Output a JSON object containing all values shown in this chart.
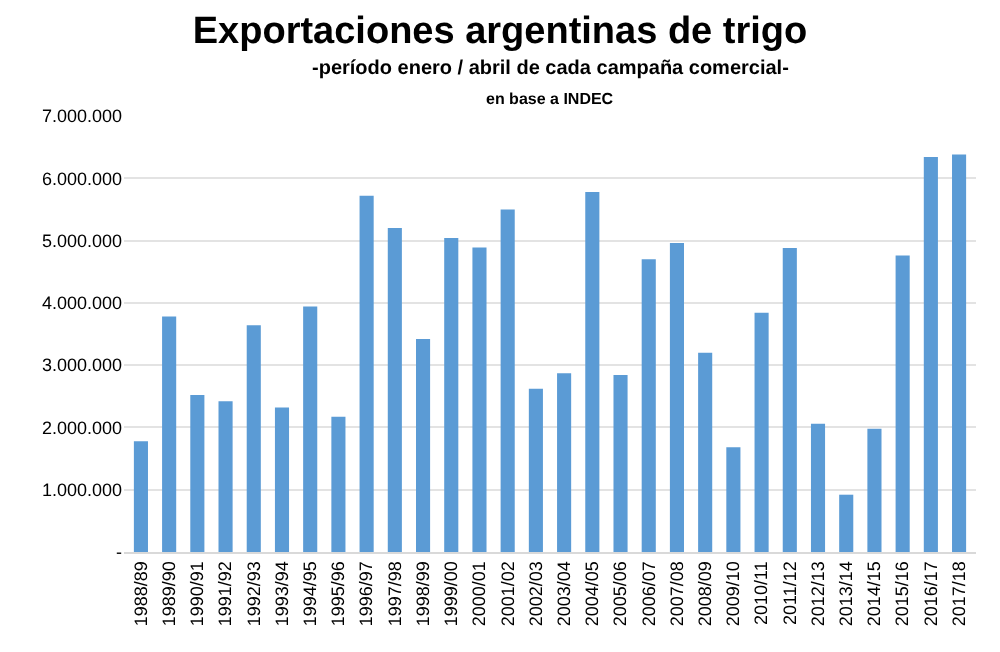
{
  "chart_data": {
    "type": "bar",
    "title": "Exportaciones argentinas de trigo",
    "subtitle": "-período enero / abril de cada campaña comercial-",
    "annotations": [
      "en base a INDEC"
    ],
    "categories": [
      "1988/89",
      "1989/90",
      "1990/91",
      "1991/92",
      "1992/93",
      "1993/94",
      "1994/95",
      "1995/96",
      "1996/97",
      "1997/98",
      "1998/99",
      "1999/00",
      "2000/01",
      "2001/02",
      "2002/03",
      "2003/04",
      "2004/05",
      "2005/06",
      "2006/07",
      "2007/08",
      "2008/09",
      "2009/10",
      "2010/11",
      "2011/12",
      "2012/13",
      "2013/14",
      "2014/15",
      "2015/16",
      "2016/17",
      "2017/18"
    ],
    "values": [
      1780000,
      3780000,
      2520000,
      2420000,
      3640000,
      2320000,
      3940000,
      2170000,
      5720000,
      5200000,
      3420000,
      5040000,
      4890000,
      5500000,
      2620000,
      2870000,
      5780000,
      2840000,
      4700000,
      4960000,
      3200000,
      1680000,
      3840000,
      4880000,
      2060000,
      920000,
      1980000,
      4760000,
      6340000,
      6380000
    ],
    "color": "#5b9bd5",
    "ylim": [
      0,
      7000000
    ],
    "yticks": [
      {
        "value": 0,
        "label": "-"
      },
      {
        "value": 1000000,
        "label": "1.000.000"
      },
      {
        "value": 2000000,
        "label": "2.000.000"
      },
      {
        "value": 3000000,
        "label": "3.000.000"
      },
      {
        "value": 4000000,
        "label": "4.000.000"
      },
      {
        "value": 5000000,
        "label": "5.000.000"
      },
      {
        "value": 6000000,
        "label": "6.000.000"
      },
      {
        "value": 7000000,
        "label": "7.000.000"
      }
    ],
    "grid": "y"
  }
}
